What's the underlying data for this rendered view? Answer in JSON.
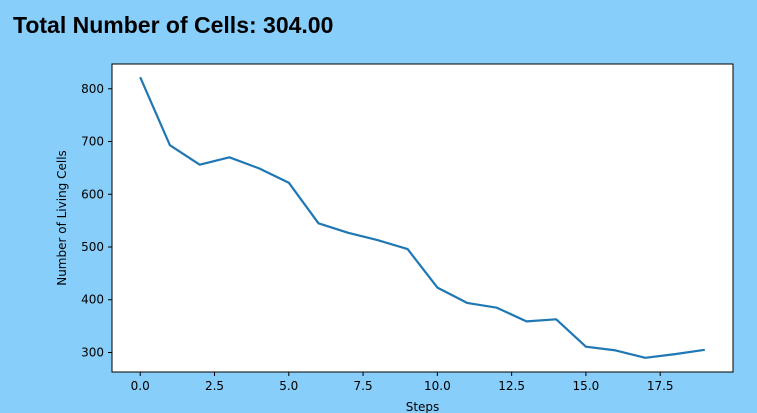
{
  "header": {
    "title": "Total Number of Cells: 304.00"
  },
  "colors": {
    "background": "#87cefa",
    "plot_background": "#ffffff",
    "line": "#1f77b4"
  },
  "chart_data": {
    "type": "line",
    "title": "",
    "xlabel": "Steps",
    "ylabel": "Number of Living Cells",
    "xlim": [
      -0.95,
      19.95
    ],
    "ylim": [
      263,
      847
    ],
    "grid": false,
    "xticks": [
      0.0,
      2.5,
      5.0,
      7.5,
      10.0,
      12.5,
      15.0,
      17.5
    ],
    "xtick_labels": [
      "0.0",
      "2.5",
      "5.0",
      "7.5",
      "10.0",
      "12.5",
      "15.0",
      "17.5"
    ],
    "yticks": [
      300,
      400,
      500,
      600,
      700,
      800
    ],
    "ytick_labels": [
      "300",
      "400",
      "500",
      "600",
      "700",
      "800"
    ],
    "series": [
      {
        "x": [
          0,
          1,
          2,
          3,
          4,
          5,
          6,
          7,
          8,
          9,
          10,
          11,
          12,
          13,
          14,
          15,
          16,
          17,
          18,
          19
        ],
        "values": [
          822,
          693,
          656,
          670,
          649,
          622,
          545,
          527,
          513,
          496,
          423,
          394,
          385,
          359,
          363,
          311,
          304,
          290,
          297,
          305
        ]
      }
    ]
  }
}
